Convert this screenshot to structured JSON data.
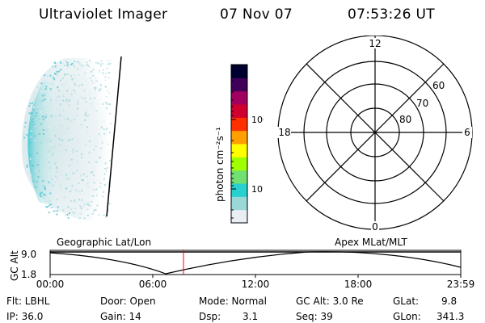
{
  "header": {
    "instrument": "Ultraviolet Imager",
    "date": "07 Nov 07",
    "time": "07:53:26 UT"
  },
  "colorbar": {
    "unit_label": "photon cm⁻²s⁻¹",
    "ticks": [
      "100",
      "10"
    ],
    "colors": [
      "#e8eef3",
      "#9ad8d8",
      "#28d0d0",
      "#70e070",
      "#a0ff00",
      "#ffff00",
      "#ffa000",
      "#ff3000",
      "#d00030",
      "#a00060",
      "#40005a",
      "#000030"
    ]
  },
  "polar": {
    "mlt_labels": {
      "top": "12",
      "left": "18",
      "right": "6",
      "bottom": "0"
    },
    "lat_labels": [
      "60",
      "70",
      "80"
    ]
  },
  "altitude_plot": {
    "left_label": "Geographic Lat/Lon",
    "right_label": "Apex MLat/MLT",
    "y_axis_title": "GC Alt",
    "y_ticks": [
      "9.0",
      "1.8"
    ],
    "x_ticks": [
      "00:00",
      "06:00",
      "12:00",
      "18:00",
      "23:59"
    ],
    "marker_time": "07:53:26",
    "marker_color": "#ff0000"
  },
  "info": {
    "row1": {
      "flt": "Flt: LBHL",
      "door": "Door: Open",
      "mode": "Mode: Normal",
      "gcalt": "GC Alt: 3.0 Re",
      "glat_label": "GLat:",
      "glat_value": "9.8"
    },
    "row2": {
      "ip": "IP: 36.0",
      "gain": "Gain: 14",
      "dsp_label": "Dsp:",
      "dsp_value": "3.1",
      "seq": "Seq: 39",
      "glon_label": "GLon:",
      "glon_value": "341.3"
    }
  }
}
